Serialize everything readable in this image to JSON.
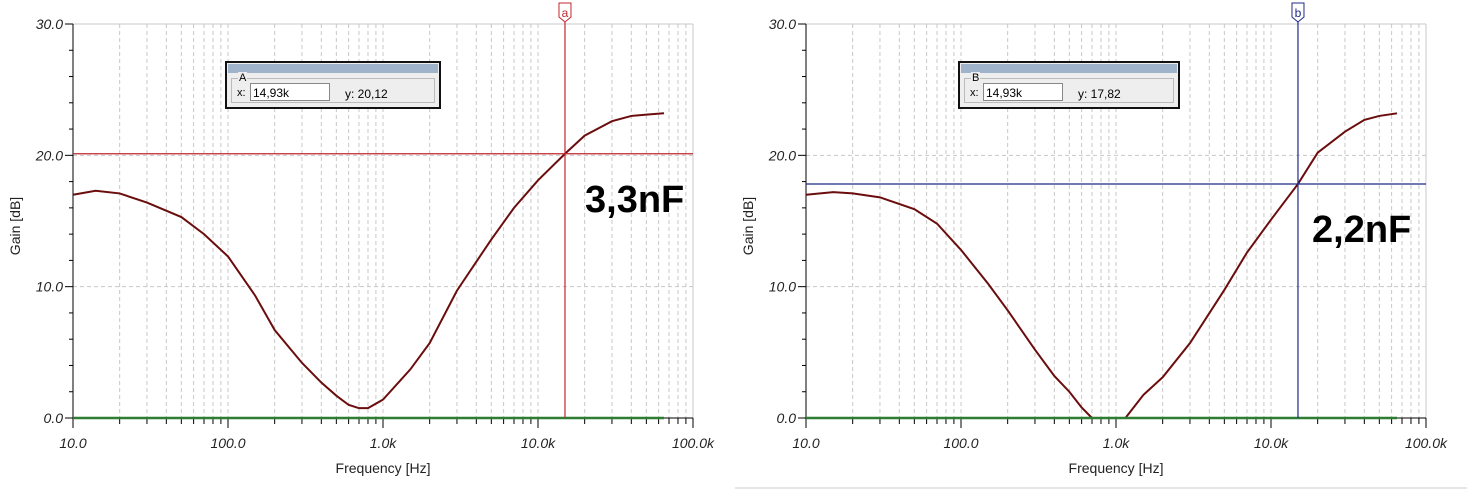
{
  "chart_data": [
    {
      "type": "line",
      "xscale": "log",
      "xlim": [
        10,
        100000
      ],
      "ylim": [
        0,
        30
      ],
      "xlabel": "Frequency [Hz]",
      "ylabel": "Gain [dB]",
      "xticks": [
        "10.0",
        "100.0",
        "1.0k",
        "10.0k",
        "100.0k"
      ],
      "yticks": [
        "0.0",
        "10.0",
        "20.0",
        "30.0"
      ],
      "grid": true,
      "annotation": "3,3nF",
      "curve_color": "#6b0d0d",
      "baseline_color": "#2e7d32",
      "cursor_color": "#c0282d",
      "cursor": {
        "marker": "a",
        "panel_name": "A",
        "x_label": "x:",
        "x_value": "14,93k",
        "y_text": "y: 20,12",
        "x": 14930,
        "y": 20.12
      },
      "series": [
        {
          "x": [
            10,
            14,
            20,
            30,
            50,
            70,
            100,
            150,
            200,
            300,
            400,
            500,
            600,
            700,
            800,
            1000,
            1500,
            2000,
            3000,
            5000,
            7000,
            10000,
            14930,
            20000,
            30000,
            40000,
            50000,
            65000
          ],
          "y": [
            17.0,
            17.3,
            17.1,
            16.4,
            15.3,
            14.0,
            12.3,
            9.3,
            6.7,
            4.2,
            2.7,
            1.7,
            1.0,
            0.75,
            0.75,
            1.4,
            3.7,
            5.7,
            9.7,
            13.6,
            16.0,
            18.1,
            20.12,
            21.5,
            22.6,
            23.0,
            23.1,
            23.2
          ]
        },
        {
          "x": [
            10,
            65000
          ],
          "y": [
            0,
            0
          ]
        }
      ]
    },
    {
      "type": "line",
      "xscale": "log",
      "xlim": [
        10,
        100000
      ],
      "ylim": [
        0,
        30
      ],
      "xlabel": "Frequency [Hz]",
      "ylabel": "Gain [dB]",
      "xticks": [
        "10.0",
        "100.0",
        "1.0k",
        "10.0k",
        "100.0k"
      ],
      "yticks": [
        "0.0",
        "10.0",
        "20.0",
        "30.0"
      ],
      "grid": true,
      "annotation": "2,2nF",
      "curve_color": "#6b0d0d",
      "baseline_color": "#2e7d32",
      "cursor_color": "#1f2a8a",
      "cursor": {
        "marker": "b",
        "panel_name": "B",
        "x_label": "x:",
        "x_value": "14,93k",
        "y_text": "y: 17,82",
        "x": 14930,
        "y": 17.82
      },
      "series": [
        {
          "x": [
            10,
            15,
            20,
            30,
            50,
            70,
            100,
            150,
            200,
            300,
            400,
            500,
            600,
            700
          ],
          "y": [
            17.0,
            17.2,
            17.1,
            16.8,
            15.9,
            14.8,
            12.8,
            10.2,
            8.2,
            5.2,
            3.2,
            2.0,
            0.8,
            0.0
          ]
        },
        {
          "x": [
            1150,
            1500,
            2000,
            3000,
            5000,
            7000,
            10000,
            14930,
            20000,
            30000,
            40000,
            50000,
            65000
          ],
          "y": [
            0.0,
            1.75,
            3.1,
            5.7,
            9.75,
            12.6,
            15.1,
            17.82,
            20.2,
            21.8,
            22.7,
            23.0,
            23.2
          ]
        },
        {
          "x": [
            10,
            65000
          ],
          "y": [
            0,
            0
          ]
        }
      ]
    }
  ]
}
